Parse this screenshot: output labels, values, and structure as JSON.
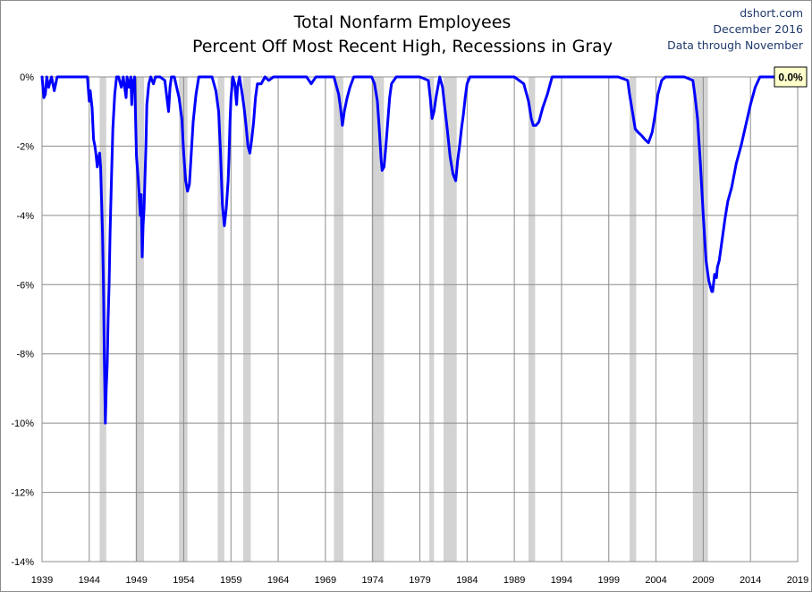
{
  "header": {
    "title_line1": "Total Nonfarm Employees",
    "title_line2": "Percent Off Most Recent High, Recessions in Gray",
    "source": "dshort.com",
    "date": "December 2016",
    "data_note": "Data through November"
  },
  "colors": {
    "series": "#0000ff",
    "recession": "#d3d3d3",
    "grid": "#8c8c8c",
    "callout_bg": "#ffffcc"
  },
  "chart_data": {
    "type": "line",
    "title": "Total Nonfarm Employees / Percent Off Most Recent High, Recessions in Gray",
    "xlim": [
      1939,
      2019
    ],
    "ylim": [
      -14,
      0
    ],
    "x_ticks": [
      "1939",
      "1944",
      "1949",
      "1954",
      "1959",
      "1964",
      "1969",
      "1974",
      "1979",
      "1984",
      "1989",
      "1994",
      "1999",
      "2004",
      "2009",
      "2014",
      "2019"
    ],
    "y_ticks": [
      "0%",
      "-2%",
      "-4%",
      "-6%",
      "-8%",
      "-10%",
      "-12%",
      "-14%"
    ],
    "grid": true,
    "latest_value_label": "0.0%",
    "recessions": [
      [
        1945.1,
        1945.8
      ],
      [
        1948.9,
        1949.8
      ],
      [
        1953.5,
        1954.4
      ],
      [
        1957.6,
        1958.3
      ],
      [
        1960.3,
        1961.1
      ],
      [
        1969.9,
        1970.9
      ],
      [
        1973.9,
        1975.2
      ],
      [
        1980.0,
        1980.5
      ],
      [
        1981.5,
        1982.9
      ],
      [
        1990.5,
        1991.2
      ],
      [
        2001.2,
        2001.9
      ],
      [
        2007.9,
        2009.5
      ]
    ],
    "series": [
      {
        "x": [
          1939.0,
          1939.2,
          1939.35,
          1939.5,
          1939.7,
          1940.0,
          1940.3,
          1940.6,
          1941.0,
          1942.0,
          1943.0,
          1943.6,
          1943.8,
          1944.0,
          1944.1,
          1944.3,
          1944.45,
          1944.6,
          1944.7,
          1944.85,
          1945.0,
          1945.1,
          1945.2,
          1945.3,
          1945.4,
          1945.5,
          1945.6,
          1945.7,
          1945.8,
          1945.9,
          1946.0,
          1946.1,
          1946.2,
          1946.35,
          1946.5,
          1946.7,
          1946.9,
          1947.1,
          1947.4,
          1947.6,
          1947.9,
          1948.0,
          1948.2,
          1948.4,
          1948.5,
          1948.6,
          1948.7,
          1948.8,
          1948.9,
          1949.0,
          1949.2,
          1949.4,
          1949.5,
          1949.6,
          1949.7,
          1949.8,
          1949.9,
          1950.0,
          1950.1,
          1950.3,
          1950.5,
          1950.8,
          1951.0,
          1951.5,
          1952.0,
          1952.4,
          1952.55,
          1952.7,
          1953.0,
          1953.5,
          1953.8,
          1954.0,
          1954.2,
          1954.4,
          1954.6,
          1954.8,
          1955.0,
          1955.3,
          1955.6,
          1956.0,
          1957.0,
          1957.4,
          1957.7,
          1957.9,
          1958.1,
          1958.3,
          1958.5,
          1958.7,
          1958.8,
          1958.9,
          1959.0,
          1959.2,
          1959.4,
          1959.6,
          1959.7,
          1959.9,
          1960.2,
          1960.4,
          1960.6,
          1960.8,
          1961.0,
          1961.2,
          1961.4,
          1961.6,
          1961.8,
          1962.2,
          1962.6,
          1963.0,
          1963.5,
          1964.0,
          1965.0,
          1966.0,
          1967.0,
          1967.5,
          1968.0,
          1969.0,
          1969.9,
          1970.1,
          1970.4,
          1970.6,
          1970.8,
          1971.0,
          1971.3,
          1971.6,
          1972.0,
          1973.0,
          1973.9,
          1974.2,
          1974.5,
          1974.7,
          1974.9,
          1975.0,
          1975.2,
          1975.4,
          1975.6,
          1975.8,
          1976.0,
          1976.5,
          1977.0,
          1978.0,
          1979.0,
          1979.9,
          1980.1,
          1980.3,
          1980.5,
          1980.7,
          1980.9,
          1981.1,
          1981.4,
          1981.6,
          1981.9,
          1982.2,
          1982.5,
          1982.8,
          1983.0,
          1983.2,
          1983.4,
          1983.6,
          1983.8,
          1984.0,
          1984.3,
          1984.6,
          1985.0,
          1986.0,
          1987.0,
          1988.0,
          1989.0,
          1990.0,
          1990.5,
          1990.8,
          1991.0,
          1991.3,
          1991.6,
          1992.0,
          1992.5,
          1992.8,
          1993.0,
          1993.3,
          1993.6,
          1994.0,
          1995.0,
          1996.0,
          1997.0,
          1998.0,
          1999.0,
          2000.0,
          2001.0,
          2001.2,
          2001.5,
          2001.8,
          2002.1,
          2002.5,
          2002.8,
          2003.2,
          2003.6,
          2003.9,
          2004.2,
          2004.6,
          2005.0,
          2005.5,
          2006.0,
          2007.0,
          2007.9,
          2008.1,
          2008.4,
          2008.7,
          2009.0,
          2009.3,
          2009.6,
          2009.9,
          2010.0,
          2010.2,
          2010.4,
          2010.5,
          2010.7,
          2011.0,
          2011.3,
          2011.6,
          2012.0,
          2012.5,
          2013.0,
          2013.5,
          2014.0,
          2014.5,
          2015.0,
          2015.5,
          2016.0,
          2016.9
        ],
        "values": [
          0.0,
          -0.6,
          -0.5,
          0.0,
          -0.3,
          0.0,
          -0.4,
          0.0,
          0.0,
          0.0,
          0.0,
          0.0,
          0.0,
          -0.7,
          -0.4,
          -0.9,
          -1.8,
          -2.0,
          -2.2,
          -2.6,
          -2.3,
          -2.2,
          -2.6,
          -3.5,
          -4.5,
          -6.0,
          -8.2,
          -10.0,
          -9.0,
          -8.3,
          -7.0,
          -6.0,
          -4.5,
          -3.0,
          -1.5,
          -0.5,
          0.0,
          0.0,
          -0.3,
          0.0,
          -0.6,
          0.0,
          -0.3,
          0.0,
          -0.8,
          -0.1,
          -0.2,
          0.0,
          -1.2,
          -2.3,
          -3.0,
          -4.0,
          -3.4,
          -5.2,
          -4.3,
          -3.8,
          -2.9,
          -2.0,
          -0.8,
          -0.2,
          0.0,
          -0.2,
          0.0,
          0.0,
          -0.1,
          -1.0,
          -0.3,
          0.0,
          0.0,
          -0.6,
          -1.2,
          -2.2,
          -3.0,
          -3.3,
          -3.1,
          -2.2,
          -1.3,
          -0.5,
          0.0,
          0.0,
          0.0,
          -0.4,
          -1.0,
          -2.2,
          -3.7,
          -4.3,
          -3.8,
          -3.0,
          -2.3,
          -1.3,
          -0.6,
          0.0,
          -0.2,
          -0.8,
          -0.3,
          0.0,
          -0.5,
          -0.9,
          -1.4,
          -2.0,
          -2.2,
          -1.8,
          -1.3,
          -0.6,
          -0.2,
          -0.2,
          0.0,
          -0.1,
          0.0,
          0.0,
          0.0,
          0.0,
          0.0,
          -0.2,
          0.0,
          0.0,
          0.0,
          -0.2,
          -0.5,
          -0.9,
          -1.4,
          -1.0,
          -0.6,
          -0.3,
          0.0,
          0.0,
          0.0,
          -0.2,
          -0.7,
          -1.5,
          -2.4,
          -2.7,
          -2.6,
          -2.0,
          -1.3,
          -0.6,
          -0.2,
          0.0,
          0.0,
          0.0,
          0.0,
          -0.1,
          -0.6,
          -1.2,
          -1.0,
          -0.6,
          -0.3,
          0.0,
          -0.3,
          -0.8,
          -1.5,
          -2.3,
          -2.8,
          -3.0,
          -2.4,
          -2.0,
          -1.5,
          -1.1,
          -0.6,
          -0.2,
          0.0,
          0.0,
          0.0,
          0.0,
          0.0,
          0.0,
          0.0,
          -0.2,
          -0.7,
          -1.2,
          -1.4,
          -1.4,
          -1.3,
          -0.9,
          -0.5,
          -0.2,
          0.0,
          0.0,
          0.0,
          0.0,
          0.0,
          0.0,
          0.0,
          0.0,
          0.0,
          0.0,
          -0.1,
          -0.5,
          -1.0,
          -1.5,
          -1.6,
          -1.7,
          -1.8,
          -1.9,
          -1.6,
          -1.1,
          -0.5,
          -0.1,
          0.0,
          0.0,
          0.0,
          0.0,
          -0.1,
          -0.5,
          -1.2,
          -2.5,
          -4.0,
          -5.3,
          -5.9,
          -6.2,
          -6.2,
          -5.7,
          -5.8,
          -5.5,
          -5.3,
          -4.7,
          -4.1,
          -3.6,
          -3.2,
          -2.5,
          -2.0,
          -1.4,
          -0.8,
          -0.3,
          0.0,
          0.0,
          0.0,
          0.0
        ]
      }
    ]
  }
}
